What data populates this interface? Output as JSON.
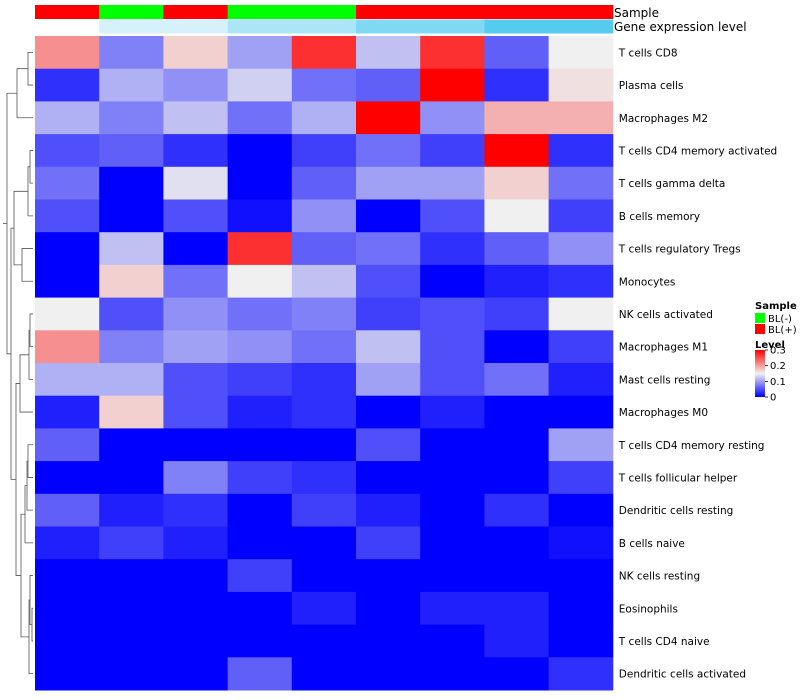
{
  "chart_data": {
    "type": "heatmap",
    "annotations": {
      "sample_label": "Sample",
      "level_label": "Gene expression level",
      "samples": [
        "BL(+)",
        "BL(-)",
        "BL(+)",
        "BL(-)",
        "BL(-)",
        "BL(+)",
        "BL(+)",
        "BL(+)",
        "BL(+)"
      ],
      "levels": [
        0,
        0.06,
        0.06,
        0.12,
        0.12,
        0.18,
        0.18,
        0.24,
        0.24
      ]
    },
    "rows": [
      "T cells CD8",
      "Plasma cells",
      "Macrophages M2",
      "T cells CD4 memory activated",
      "T cells gamma delta",
      "B cells memory",
      "T cells regulatory  Tregs",
      "Monocytes",
      "NK cells activated",
      "Macrophages M1",
      "Mast cells resting",
      "Macrophages M0",
      "T cells CD4 memory resting",
      "T cells follicular helper",
      "Dendritic cells resting",
      "B cells naive",
      "NK cells resting",
      "Eosinophils",
      "T cells CD4 naive",
      "Dendritic cells activated"
    ],
    "values": [
      [
        0.21,
        0.08,
        0.17,
        0.1,
        0.27,
        0.12,
        0.27,
        0.06,
        0.15
      ],
      [
        0.03,
        0.11,
        0.09,
        0.13,
        0.07,
        0.06,
        0.31,
        0.03,
        0.16
      ],
      [
        0.11,
        0.08,
        0.12,
        0.07,
        0.11,
        0.3,
        0.09,
        0.19,
        0.19
      ],
      [
        0.05,
        0.06,
        0.03,
        0.0,
        0.04,
        0.07,
        0.04,
        0.31,
        0.03
      ],
      [
        0.07,
        0.0,
        0.14,
        0.0,
        0.06,
        0.1,
        0.1,
        0.17,
        0.07
      ],
      [
        0.05,
        0.0,
        0.05,
        0.01,
        0.09,
        0.0,
        0.05,
        0.15,
        0.04
      ],
      [
        0.0,
        0.12,
        0.0,
        0.27,
        0.06,
        0.07,
        0.03,
        0.06,
        0.09
      ],
      [
        0.0,
        0.17,
        0.07,
        0.15,
        0.12,
        0.05,
        0.0,
        0.02,
        0.03
      ],
      [
        0.15,
        0.05,
        0.09,
        0.07,
        0.08,
        0.04,
        0.05,
        0.04,
        0.15
      ],
      [
        0.21,
        0.08,
        0.1,
        0.09,
        0.07,
        0.12,
        0.05,
        0.0,
        0.04
      ],
      [
        0.11,
        0.11,
        0.05,
        0.04,
        0.03,
        0.1,
        0.05,
        0.07,
        0.02
      ],
      [
        0.02,
        0.17,
        0.05,
        0.02,
        0.03,
        0.0,
        0.02,
        0.0,
        0.0
      ],
      [
        0.06,
        0.0,
        0.0,
        0.0,
        0.0,
        0.05,
        0.0,
        0.0,
        0.1
      ],
      [
        0.0,
        0.0,
        0.08,
        0.04,
        0.03,
        0.0,
        0.0,
        0.0,
        0.04
      ],
      [
        0.06,
        0.02,
        0.03,
        0.0,
        0.04,
        0.02,
        0.0,
        0.03,
        0.0
      ],
      [
        0.02,
        0.04,
        0.02,
        0.0,
        0.0,
        0.04,
        0.0,
        0.0,
        0.01
      ],
      [
        0.0,
        0.0,
        0.0,
        0.04,
        0.0,
        0.0,
        0.0,
        0.0,
        0.0
      ],
      [
        0.0,
        0.0,
        0.0,
        0.0,
        0.02,
        0.0,
        0.02,
        0.02,
        0.0
      ],
      [
        0.0,
        0.0,
        0.0,
        0.0,
        0.0,
        0.0,
        0.0,
        0.02,
        0.0
      ],
      [
        0.0,
        0.0,
        0.0,
        0.06,
        0.0,
        0.0,
        0.0,
        0.0,
        0.03
      ]
    ],
    "color_scale": {
      "min": 0,
      "mid": 0.15,
      "max": 0.3,
      "low_color": "#0000ff",
      "mid_color": "#f0f0f0",
      "high_color": "#ff0000"
    },
    "legend": {
      "sample_title": "Sample",
      "sample_items": [
        {
          "label": "BL(-)",
          "color": "#00ff00"
        },
        {
          "label": "BL(+)",
          "color": "#ff0000"
        }
      ],
      "level_title": "Level",
      "level_ticks": [
        {
          "value": 0.3,
          "label": "0.3"
        },
        {
          "value": 0.2,
          "label": "0.2"
        },
        {
          "value": 0.1,
          "label": "0.1"
        },
        {
          "value": 0,
          "label": "0"
        }
      ],
      "placement": "right"
    },
    "dendrogram": "rows"
  }
}
